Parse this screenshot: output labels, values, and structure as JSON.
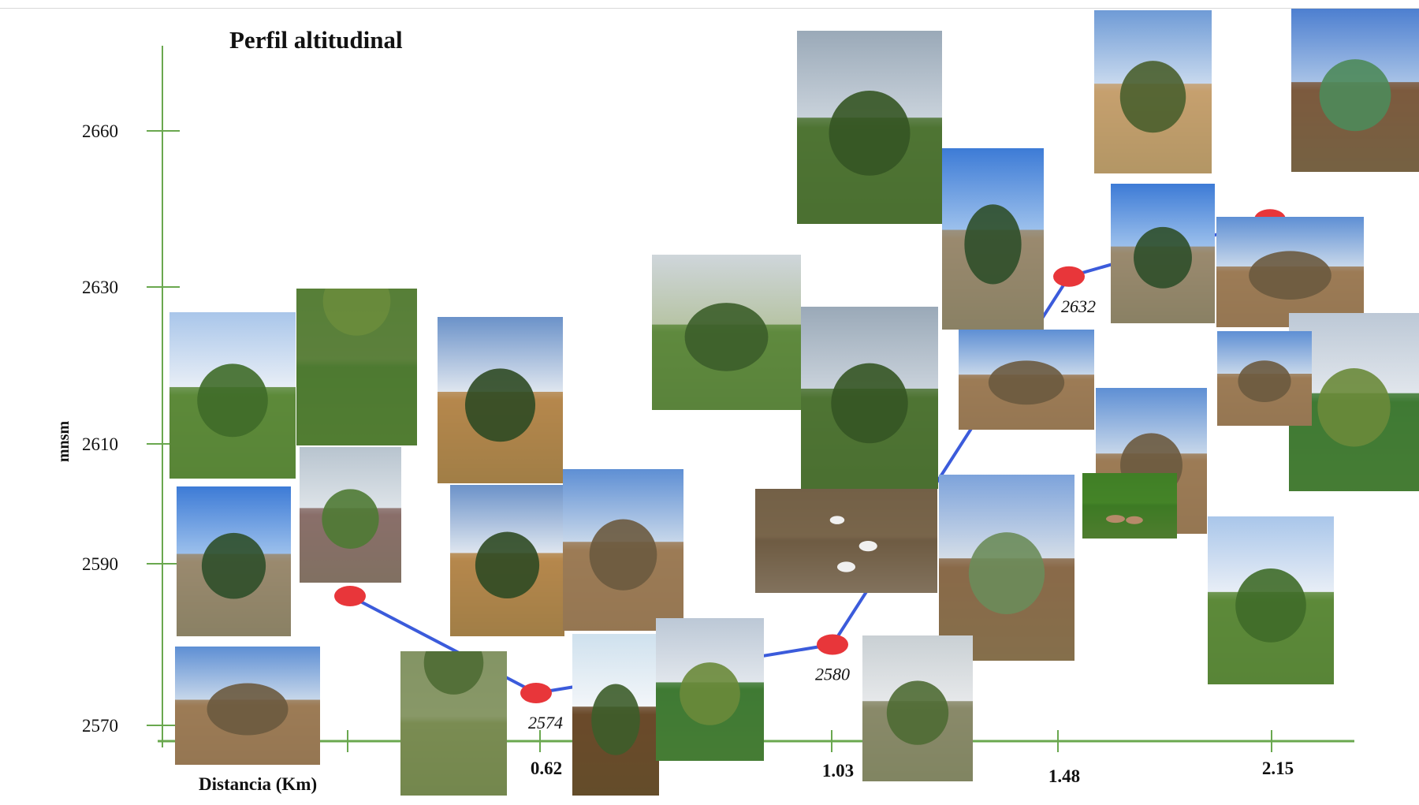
{
  "chart_data": {
    "type": "line",
    "title": "Perfil altitudinal",
    "xlabel": "Distancia (Km)",
    "ylabel": "mnsm",
    "ylim": [
      2570,
      2660
    ],
    "yticks": [
      "2570",
      "2590",
      "2610",
      "2630",
      "2660"
    ],
    "xticks": [
      "",
      "0.62",
      "1.03",
      "1.48",
      "2.15"
    ],
    "series": [
      {
        "points": [
          {
            "x": "",
            "y": 2586,
            "label": "2586"
          },
          {
            "x": "0.62",
            "y": 2574,
            "label": "2574"
          },
          {
            "x": "1.03",
            "y": 2580,
            "label": "2580"
          },
          {
            "x": "1.48",
            "y": 2632,
            "label": "2632"
          },
          {
            "x": "2.15",
            "y": 2643,
            "label": "2643"
          }
        ]
      }
    ],
    "colors": {
      "axis": "#6aa84f",
      "line": "#3b5bdb",
      "marker": "#e8363a"
    },
    "grid": false
  },
  "photos": [
    {
      "kind": "shrub"
    },
    {
      "kind": "ground"
    },
    {
      "kind": "pine"
    },
    {
      "kind": "trees"
    },
    {
      "kind": "forest"
    },
    {
      "kind": "forest"
    },
    {
      "kind": "tree"
    },
    {
      "kind": "orchard"
    },
    {
      "kind": "agave"
    },
    {
      "kind": "tree"
    },
    {
      "kind": "field"
    },
    {
      "kind": "field"
    },
    {
      "kind": "field"
    },
    {
      "kind": "cornfield"
    },
    {
      "kind": "tree"
    },
    {
      "kind": "water"
    },
    {
      "kind": "pine"
    },
    {
      "kind": "field"
    },
    {
      "kind": "flowers"
    },
    {
      "kind": "cactus"
    },
    {
      "kind": "shrub"
    },
    {
      "kind": "field"
    },
    {
      "kind": "grass"
    },
    {
      "kind": "pinecone"
    },
    {
      "kind": "cornfield"
    },
    {
      "kind": "hillside"
    },
    {
      "kind": "mushrooms"
    },
    {
      "kind": "field"
    }
  ]
}
